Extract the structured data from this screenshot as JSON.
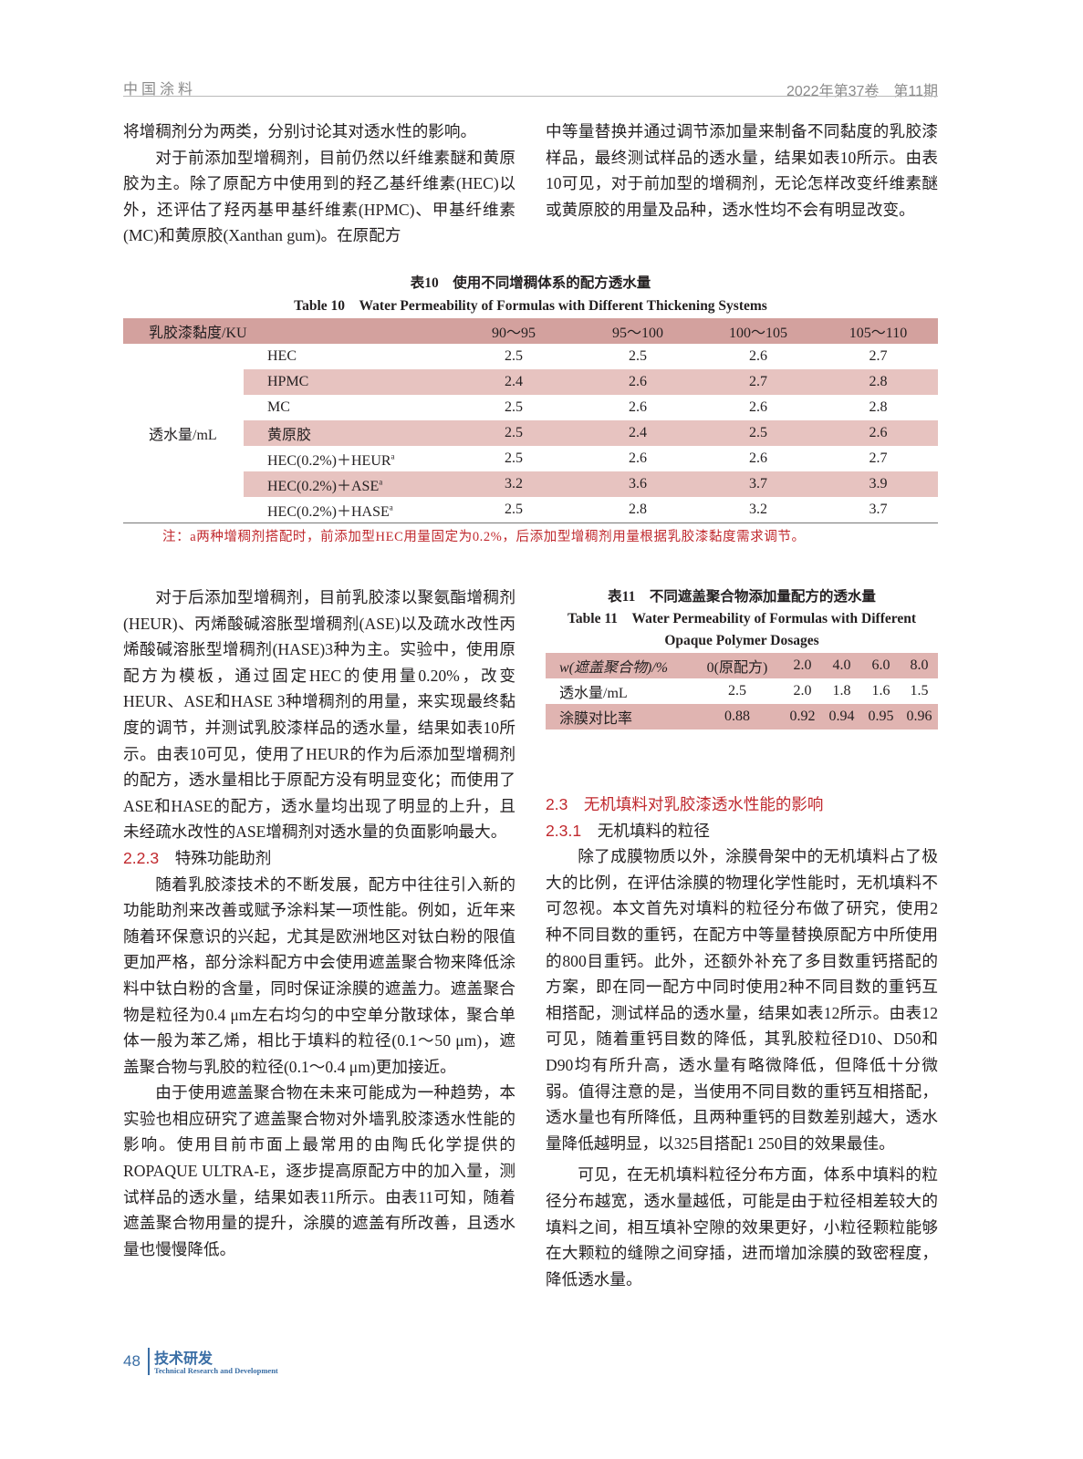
{
  "header": {
    "journal": "中国涂料",
    "issue": "2022年第37卷　第11期"
  },
  "left_top": [
    "将增稠剂分为两类，分别讨论其对透水性的影响。",
    "对于前添加型增稠剂，目前仍然以纤维素醚和黄原胶为主。除了原配方中使用到的羟乙基纤维素(HEC)以外，还评估了羟丙基甲基纤维素(HPMC)、甲基纤维素(MC)和黄原胶(Xanthan gum)。在原配方"
  ],
  "right_top": [
    "中等量替换并通过调节添加量来制备不同黏度的乳胶漆样品，最终测试样品的透水量，结果如表10所示。由表10可见，对于前加型的增稠剂，无论怎样改变纤维素醚或黄原胶的用量及品种，透水性均不会有明显改变。"
  ],
  "table10": {
    "title_cn": "表10　使用不同增稠体系的配方透水量",
    "title_en": "Table 10　Water Permeability of Formulas with Different Thickening Systems",
    "header": [
      "乳胶漆黏度/KU",
      "90～95",
      "95～100",
      "100～105",
      "105～110"
    ],
    "group_label": "透水量/mL",
    "rows": [
      {
        "name": "HEC",
        "values": [
          "2.5",
          "2.5",
          "2.6",
          "2.7"
        ]
      },
      {
        "name": "HPMC",
        "values": [
          "2.4",
          "2.6",
          "2.7",
          "2.8"
        ]
      },
      {
        "name": "MC",
        "values": [
          "2.5",
          "2.6",
          "2.6",
          "2.8"
        ]
      },
      {
        "name": "黄原胶",
        "values": [
          "2.5",
          "2.4",
          "2.5",
          "2.6"
        ]
      },
      {
        "name": "HEC(0.2%)＋HEUR",
        "sup": "a",
        "values": [
          "2.5",
          "2.6",
          "2.6",
          "2.7"
        ]
      },
      {
        "name": "HEC(0.2%)＋ASE",
        "sup": "a",
        "values": [
          "3.2",
          "3.6",
          "3.7",
          "3.9"
        ]
      },
      {
        "name": "HEC(0.2%)＋HASE",
        "sup": "a",
        "values": [
          "2.5",
          "2.8",
          "3.2",
          "3.7"
        ]
      }
    ],
    "note": "注：a两种增稠剂搭配时，前添加型HEC用量固定为0.2%，后添加型增稠剂用量根据乳胶漆黏度需求调节。"
  },
  "left_bottom": {
    "p1": "对于后添加型增稠剂，目前乳胶漆以聚氨酯增稠剂(HEUR)、丙烯酸碱溶胀型增稠剂(ASE)以及疏水改性丙烯酸碱溶胀型增稠剂(HASE)3种为主。实验中，使用原配方为模板，通过固定HEC的使用量0.20%，改变HEUR、ASE和HASE 3种增稠剂的用量，来实现最终黏度的调节，并测试乳胶漆样品的透水量，结果如表10所示。由表10可见，使用了HEUR的作为后添加型增稠剂的配方，透水量相比于原配方没有明显变化；而使用了ASE和HASE的配方，透水量均出现了明显的上升，且未经疏水改性的ASE增稠剂对透水量的负面影响最大。",
    "h_num": "2.2.3",
    "h_text": "特殊功能助剂",
    "p2": "随着乳胶漆技术的不断发展，配方中往往引入新的功能助剂来改善或赋予涂料某一项性能。例如，近年来随着环保意识的兴起，尤其是欧洲地区对钛白粉的限值更加严格，部分涂料配方中会使用遮盖聚合物来降低涂料中钛白粉的含量，同时保证涂膜的遮盖力。遮盖聚合物是粒径为0.4 μm左右均匀的中空单分散球体，聚合单体一般为苯乙烯，相比于填料的粒径(0.1～50 μm)，遮盖聚合物与乳胶的粒径(0.1～0.4 μm)更加接近。",
    "p3": "由于使用遮盖聚合物在未来可能成为一种趋势，本实验也相应研究了遮盖聚合物对外墙乳胶漆透水性能的影响。使用目前市面上最常用的由陶氏化学提供的ROPAQUE ULTRA-E，逐步提高原配方中的加入量，测试样品的透水量，结果如表11所示。由表11可知，随着遮盖聚合物用量的提升，涂膜的遮盖有所改善，且透水量也慢慢降低。"
  },
  "table11": {
    "title_cn": "表11　不同遮盖聚合物添加量配方的透水量",
    "title_en_1": "Table 11　Water Permeability of Formulas with Different",
    "title_en_2": "Opaque Polymer Dosages",
    "rows": [
      {
        "label": "w(遮盖聚合物)/%",
        "values": [
          "0(原配方)",
          "2.0",
          "4.0",
          "6.0",
          "8.0"
        ]
      },
      {
        "label": "透水量/mL",
        "values": [
          "2.5",
          "2.0",
          "1.8",
          "1.6",
          "1.5"
        ]
      },
      {
        "label": "涂膜对比率",
        "values": [
          "0.88",
          "0.92",
          "0.94",
          "0.95",
          "0.96"
        ]
      }
    ]
  },
  "right_bottom": {
    "h2": "2.3　无机填料对乳胶漆透水性能的影响",
    "h3_num": "2.3.1",
    "h3_text": "无机填料的粒径",
    "p1": "除了成膜物质以外，涂膜骨架中的无机填料占了极大的比例，在评估涂膜的物理化学性能时，无机填料不可忽视。本文首先对填料的粒径分布做了研究，使用2种不同目数的重钙，在配方中等量替换原配方中所使用的800目重钙。此外，还额外补充了多目数重钙搭配的方案，即在同一配方中同时使用2种不同目数的重钙互相搭配，测试样品的透水量，结果如表12所示。由表12可见，随着重钙目数的降低，其乳胶粒径D10、D50和D90均有所升高，透水量有略微降低，但降低十分微弱。值得注意的是，当使用不同目数的重钙互相搭配，透水量也有所降低，且两种重钙的目数差别越大，透水量降低越明显，以325目搭配1 250目的效果最佳。",
    "p2": "可见，在无机填料粒径分布方面，体系中填料的粒径分布越宽，透水量越低，可能是由于粒径相差较大的填料之间，相互填补空隙的效果更好，小粒径颗粒能够在大颗粒的缝隙之间穿插，进而增加涂膜的致密程度，降低透水量。"
  },
  "footer": {
    "page": "48",
    "section_cn": "技术研发",
    "section_en": "Technical Research and Development"
  },
  "colors": {
    "accent_red": "#c0282d",
    "table_header": "#d3a19e",
    "table_shade": "#e7c3c0",
    "footer_blue": "#3a6ea5"
  }
}
